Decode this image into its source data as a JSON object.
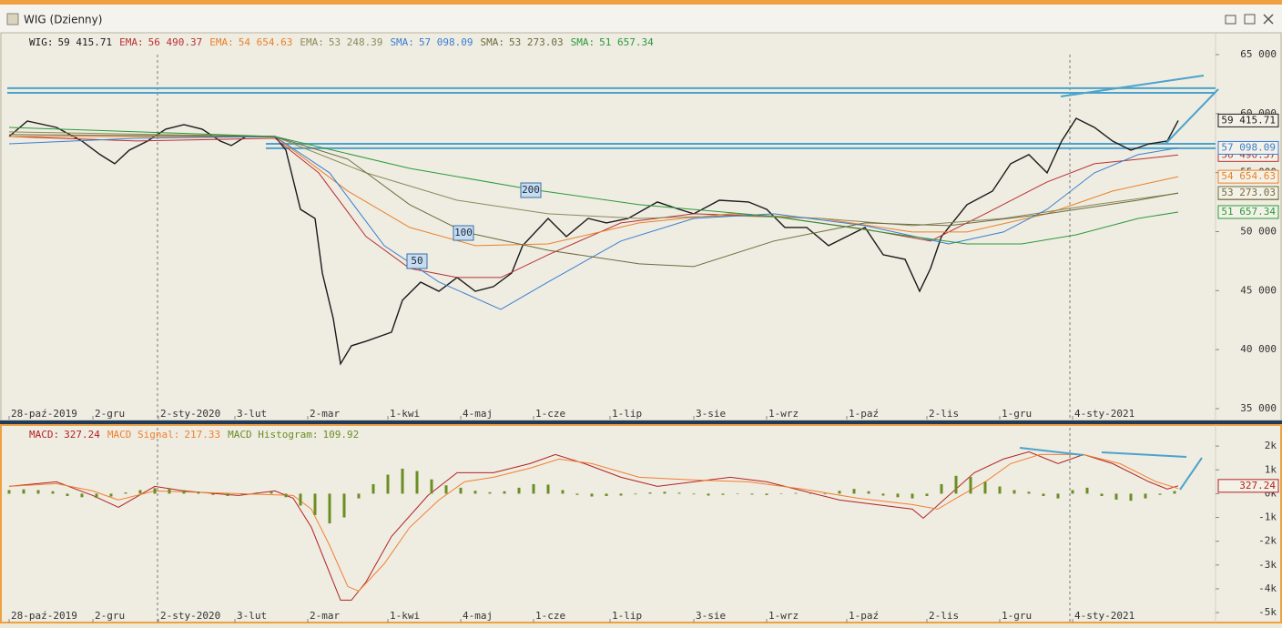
{
  "window_title": "WIG (Dzienny)",
  "chart_data": [
    {
      "type": "line",
      "xlim": [
        -0.5,
        331.25
      ],
      "xticks": [
        {
          "value": 0,
          "label": "28-paź-2019"
        },
        {
          "value": 23,
          "label": "2-gru"
        },
        {
          "value": 41,
          "label": "2-sty-2020"
        },
        {
          "value": 62,
          "label": "3-lut"
        },
        {
          "value": 82,
          "label": "2-mar"
        },
        {
          "value": 104,
          "label": "1-kwi"
        },
        {
          "value": 124,
          "label": "4-maj"
        },
        {
          "value": 144,
          "label": "1-cze"
        },
        {
          "value": 165,
          "label": "1-lip"
        },
        {
          "value": 188,
          "label": "3-sie"
        },
        {
          "value": 208,
          "label": "1-wrz"
        },
        {
          "value": 230,
          "label": "1-paź"
        },
        {
          "value": 252,
          "label": "2-lis"
        },
        {
          "value": 272,
          "label": "1-gru"
        },
        {
          "value": 292,
          "label": "4-sty-2021"
        }
      ],
      "ylim": [
        34150,
        66540
      ],
      "yticks": [
        {
          "value": 35000,
          "label": "35 000"
        },
        {
          "value": 40000,
          "label": "40 000"
        },
        {
          "value": 45000,
          "label": "45 000"
        },
        {
          "value": 50000,
          "label": "50 000"
        },
        {
          "value": 55000,
          "label": "55 000"
        },
        {
          "value": 60000,
          "label": "60 000"
        },
        {
          "value": 65000,
          "label": "65 000"
        }
      ],
      "levels": [
        62150,
        61760,
        57440,
        57060
      ],
      "level_color": "#4ba3cc",
      "ma_labels": [
        "50",
        "100",
        "200"
      ],
      "series": [
        {
          "name": "WIG:",
          "color": "#1a1a1a",
          "box": true,
          "last": 59415.71,
          "last_label": "59 415.71",
          "x": [
            0,
            5,
            13,
            20,
            25,
            29,
            33,
            38,
            43,
            48,
            53,
            58,
            61,
            65,
            73,
            76,
            80,
            84,
            86,
            89,
            91,
            94,
            98,
            105,
            108,
            113,
            118,
            123,
            128,
            133,
            138,
            141,
            148,
            153,
            159,
            164,
            170,
            178,
            184,
            188,
            195,
            203,
            208,
            213,
            219,
            225,
            230,
            235,
            240,
            246,
            250,
            253,
            256,
            263,
            270,
            275,
            280,
            285,
            289,
            293,
            298,
            303,
            308,
            313,
            318,
            321
          ],
          "values": [
            58060,
            59370,
            58830,
            57670,
            56520,
            55750,
            56900,
            57670,
            58680,
            59060,
            58680,
            57670,
            57290,
            58060,
            58060,
            56900,
            51890,
            51120,
            46500,
            42640,
            38790,
            40330,
            40710,
            41480,
            44180,
            45720,
            44950,
            46110,
            44950,
            45340,
            46500,
            48810,
            51120,
            49580,
            51120,
            50740,
            51120,
            52510,
            51890,
            51510,
            52660,
            52510,
            51890,
            50350,
            50350,
            48810,
            49580,
            50350,
            48040,
            47650,
            44950,
            46880,
            49580,
            52280,
            53430,
            55750,
            56520,
            54980,
            57670,
            59600,
            58830,
            57670,
            56900,
            57440,
            57670,
            59415.71
          ]
        },
        {
          "name": "EMA:",
          "color": "#b83232",
          "box": true,
          "last": 56490.37,
          "last_label": "56 490.37",
          "x": [
            0,
            35,
            73,
            85,
            98,
            110,
            123,
            135,
            148,
            168,
            188,
            210,
            235,
            253,
            268,
            285,
            298,
            310,
            321
          ],
          "values": [
            58060,
            57680,
            57910,
            54980,
            49580,
            46880,
            46110,
            46110,
            48040,
            50740,
            51510,
            51280,
            50200,
            49200,
            51510,
            54210,
            55750,
            56130,
            56490.37
          ]
        },
        {
          "name": "EMA:",
          "color": "#e8822a",
          "box": true,
          "last": 54654.63,
          "last_label": "54 654.63",
          "x": [
            0,
            73,
            93,
            110,
            128,
            148,
            173,
            198,
            223,
            248,
            263,
            285,
            303,
            321
          ],
          "values": [
            58060,
            58060,
            53440,
            50350,
            48810,
            48960,
            50740,
            51510,
            51120,
            49970,
            49970,
            51510,
            53440,
            54654.63
          ]
        },
        {
          "name": "EMA:",
          "color": "#8c8a5a",
          "box": true,
          "last": 53248.39,
          "last_label": "53 248.39",
          "x": [
            0,
            73,
            98,
            123,
            148,
            173,
            198,
            223,
            248,
            273,
            298,
            321
          ],
          "values": [
            58450,
            58060,
            54980,
            52660,
            51510,
            51120,
            51350,
            51120,
            50510,
            51120,
            52280,
            53248.39
          ]
        },
        {
          "name": "SMA:",
          "color": "#3a7fd0",
          "box": true,
          "last": 57098.09,
          "last_label": "57 098.09",
          "x": [
            0,
            35,
            73,
            88,
            103,
            118,
            135,
            148,
            168,
            188,
            210,
            235,
            258,
            273,
            285,
            298,
            310,
            321
          ],
          "values": [
            57440,
            57910,
            58060,
            54980,
            48810,
            45730,
            43410,
            45730,
            49200,
            51120,
            51510,
            50510,
            48960,
            49970,
            51890,
            54980,
            56520,
            57098.09
          ]
        },
        {
          "name": "SMA:",
          "color": "#6e6b3c",
          "box": true,
          "last": 53273.03,
          "last_label": "53 273.03",
          "x": [
            0,
            73,
            93,
            110,
            125,
            148,
            173,
            188,
            210,
            235,
            258,
            285,
            310,
            321
          ],
          "values": [
            58220,
            58060,
            56140,
            52280,
            49970,
            48420,
            47270,
            47040,
            49200,
            50740,
            50510,
            51510,
            52660,
            53273.03
          ]
        },
        {
          "name": "SMA:",
          "color": "#2a9a3a",
          "box": true,
          "last": 51657.34,
          "last_label": "51 657.34",
          "x": [
            0,
            73,
            110,
            143,
            173,
            210,
            248,
            263,
            278,
            293,
            310,
            321
          ],
          "values": [
            58830,
            58060,
            55360,
            53590,
            52280,
            51280,
            49580,
            48960,
            48960,
            49730,
            51120,
            51657.34
          ]
        }
      ]
    },
    {
      "type": "line",
      "xlim": [
        -0.5,
        331.25
      ],
      "xticks": [
        {
          "value": 0,
          "label": "28-paź-2019"
        },
        {
          "value": 23,
          "label": "2-gru"
        },
        {
          "value": 41,
          "label": "2-sty-2020"
        },
        {
          "value": 62,
          "label": "3-lut"
        },
        {
          "value": 82,
          "label": "2-mar"
        },
        {
          "value": 104,
          "label": "1-kwi"
        },
        {
          "value": 124,
          "label": "4-maj"
        },
        {
          "value": 144,
          "label": "1-cze"
        },
        {
          "value": 165,
          "label": "1-lip"
        },
        {
          "value": 188,
          "label": "3-sie"
        },
        {
          "value": 208,
          "label": "1-wrz"
        },
        {
          "value": 230,
          "label": "1-paź"
        },
        {
          "value": 252,
          "label": "2-lis"
        },
        {
          "value": 272,
          "label": "1-gru"
        },
        {
          "value": 292,
          "label": "4-sty-2021"
        }
      ],
      "ylim": [
        -5380,
        2770
      ],
      "yticks": [
        {
          "value": 2000,
          "label": "2k"
        },
        {
          "value": 1000,
          "label": "1k"
        },
        {
          "value": 0,
          "label": "0k"
        },
        {
          "value": -1000,
          "label": "-1k"
        },
        {
          "value": -2000,
          "label": "-2k"
        },
        {
          "value": -3000,
          "label": "-3k"
        },
        {
          "value": -4000,
          "label": "-4k"
        },
        {
          "value": -5000,
          "label": "-5k"
        }
      ],
      "series": [
        {
          "name": "MACD:",
          "color": "#b22222",
          "box": true,
          "last": 327.24,
          "last_label": "327.24",
          "x": [
            0,
            13,
            23,
            30,
            40,
            48,
            63,
            73,
            78,
            83,
            88,
            91,
            94,
            98,
            105,
            115,
            123,
            133,
            143,
            150,
            158,
            168,
            178,
            188,
            198,
            208,
            218,
            228,
            238,
            248,
            251,
            258,
            265,
            273,
            280,
            288,
            295,
            303,
            313,
            318,
            321
          ],
          "values": [
            306,
            497,
            -77,
            -574,
            306,
            115,
            -77,
            115,
            -191,
            -1415,
            -3328,
            -4476,
            -4476,
            -3711,
            -1798,
            -77,
            880,
            880,
            1262,
            1645,
            1262,
            689,
            306,
            497,
            689,
            497,
            115,
            -268,
            -459,
            -650,
            -1033,
            -77,
            880,
            1454,
            1760,
            1262,
            1645,
            1262,
            497,
            191,
            327.24
          ]
        },
        {
          "name": "MACD Signal:",
          "color": "#f08030",
          "box": false,
          "last": 217.33,
          "last_label": "217.33",
          "x": [
            0,
            13,
            23,
            30,
            40,
            63,
            78,
            83,
            88,
            93,
            96,
            103,
            110,
            118,
            125,
            133,
            143,
            151,
            160,
            173,
            188,
            203,
            218,
            233,
            248,
            255,
            260,
            268,
            275,
            283,
            295,
            305,
            315,
            321
          ],
          "values": [
            306,
            421,
            115,
            -268,
            115,
            0,
            -77,
            -650,
            -2181,
            -3902,
            -4093,
            -2946,
            -1415,
            -268,
            497,
            689,
            1071,
            1454,
            1262,
            689,
            574,
            497,
            191,
            -191,
            -459,
            -650,
            -191,
            497,
            1262,
            1645,
            1645,
            1262,
            497,
            217.33
          ]
        },
        {
          "name": "MACD Histogram:",
          "color": "#6b8e23",
          "type": "bar",
          "box": false,
          "last": 109.92,
          "last_label": "109.92",
          "x": [
            0,
            4,
            8,
            12,
            16,
            20,
            24,
            28,
            32,
            36,
            40,
            44,
            48,
            52,
            56,
            60,
            64,
            68,
            72,
            76,
            80,
            84,
            88,
            92,
            96,
            100,
            104,
            108,
            112,
            116,
            120,
            124,
            128,
            132,
            136,
            140,
            144,
            148,
            152,
            156,
            160,
            164,
            168,
            172,
            176,
            180,
            184,
            188,
            192,
            196,
            200,
            204,
            208,
            212,
            216,
            220,
            224,
            228,
            232,
            236,
            240,
            244,
            248,
            252,
            256,
            260,
            264,
            268,
            272,
            276,
            280,
            284,
            288,
            292,
            296,
            300,
            304,
            308,
            312,
            316,
            320
          ],
          "values": [
            150,
            180,
            150,
            100,
            -100,
            -150,
            -180,
            -120,
            50,
            150,
            230,
            200,
            150,
            80,
            -50,
            -100,
            -30,
            50,
            80,
            -150,
            -500,
            -900,
            -1250,
            -1000,
            -200,
            400,
            800,
            1050,
            950,
            600,
            350,
            250,
            120,
            60,
            100,
            250,
            400,
            380,
            150,
            -50,
            -120,
            -100,
            -80,
            -30,
            50,
            80,
            40,
            -30,
            -80,
            -50,
            -20,
            -40,
            -60,
            -20,
            30,
            10,
            -30,
            120,
            200,
            100,
            -80,
            -150,
            -200,
            -100,
            400,
            750,
            700,
            500,
            300,
            150,
            80,
            -100,
            -200,
            150,
            250,
            -100,
            -250,
            -300,
            -200,
            -50,
            109.92
          ]
        }
      ]
    }
  ]
}
